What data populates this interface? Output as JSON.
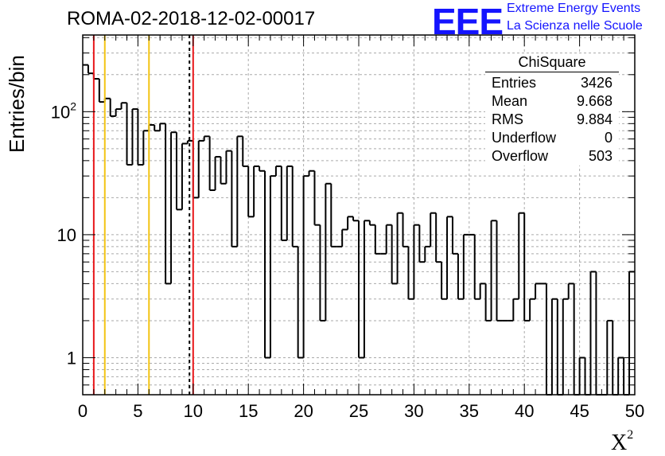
{
  "page": {
    "title": "ROMA-02-2018-12-02-00017",
    "logo": {
      "mark": "EEE",
      "line1": "Extreme Energy Events",
      "line2": "La Scienza nelle Scuole"
    }
  },
  "chart_data": {
    "type": "bar",
    "style": "step-histogram",
    "title": "ROMA-02-2018-12-02-00017",
    "xlabel": "X²",
    "ylabel": "Entries/bin",
    "xlim": [
      0,
      50
    ],
    "ylim": [
      0.5,
      420
    ],
    "yscale": "log",
    "grid": true,
    "bin_width": 0.5,
    "x_ticks": [
      "0",
      "5",
      "10",
      "15",
      "20",
      "25",
      "30",
      "35",
      "40",
      "45",
      "50"
    ],
    "y_ticks": [
      {
        "value": 1,
        "label": "1"
      },
      {
        "value": 10,
        "label": "10"
      },
      {
        "value": 100,
        "label": "10²"
      }
    ],
    "values": [
      240,
      205,
      185,
      120,
      128,
      92,
      105,
      118,
      37,
      105,
      37,
      70,
      78,
      70,
      80,
      4,
      68,
      16,
      55,
      58,
      20,
      58,
      63,
      23,
      43,
      26,
      48,
      8,
      63,
      36,
      14,
      36,
      33,
      1,
      30,
      36,
      9,
      36,
      8,
      1,
      30,
      33,
      12,
      2,
      26,
      8,
      8,
      11,
      14,
      13,
      1,
      13,
      12,
      7,
      7,
      12,
      4,
      15,
      8,
      3,
      12,
      6,
      8,
      15,
      6,
      3,
      14,
      7,
      3,
      10,
      10,
      3,
      4,
      2,
      13,
      2,
      2,
      2,
      3,
      15,
      2,
      3,
      4,
      4,
      0.5,
      3,
      0.5,
      3,
      4,
      0.5,
      1,
      0.5,
      5,
      0.5,
      0.5,
      2,
      0.5,
      1,
      0.5,
      5
    ],
    "vertical_lines": [
      {
        "x": 1,
        "color": "#e8171a",
        "style": "solid"
      },
      {
        "x": 2,
        "color": "#f2c413",
        "style": "solid"
      },
      {
        "x": 6,
        "color": "#f2c413",
        "style": "solid"
      },
      {
        "x": 9.668,
        "color": "#000000",
        "style": "dashed"
      },
      {
        "x": 10,
        "color": "#e8171a",
        "style": "solid"
      }
    ],
    "legend": "top-right",
    "stats_box": {
      "title": "ChiSquare",
      "rows": [
        {
          "label": "Entries",
          "value": "3426"
        },
        {
          "label": "Mean",
          "value": "9.668"
        },
        {
          "label": "RMS",
          "value": "9.884"
        },
        {
          "label": "Underflow",
          "value": "0"
        },
        {
          "label": "Overflow",
          "value": "503"
        }
      ]
    }
  }
}
